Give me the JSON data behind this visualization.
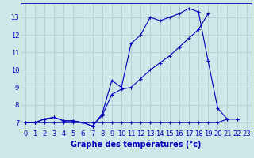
{
  "bg_color": "#cce8e8",
  "grid_color": "#aacaca",
  "line_color": "#0000bb",
  "x_hours": [
    0,
    1,
    2,
    3,
    4,
    5,
    6,
    7,
    8,
    9,
    10,
    11,
    12,
    13,
    14,
    15,
    16,
    17,
    18,
    19,
    20,
    21,
    22,
    23
  ],
  "series1": [
    7.0,
    7.0,
    7.2,
    7.3,
    7.1,
    7.1,
    7.0,
    6.8,
    7.5,
    9.4,
    9.0,
    11.5,
    12.0,
    13.0,
    12.8,
    13.0,
    13.2,
    13.5,
    13.3,
    10.5,
    7.8,
    7.2,
    7.2,
    null
  ],
  "series2": [
    7.0,
    7.0,
    7.2,
    7.3,
    7.1,
    7.1,
    7.0,
    6.8,
    7.4,
    8.6,
    8.9,
    9.0,
    9.5,
    10.0,
    10.4,
    10.8,
    11.3,
    11.8,
    12.3,
    13.2,
    null,
    null,
    null,
    null
  ],
  "series3": [
    7.0,
    7.0,
    7.0,
    7.0,
    7.0,
    7.0,
    7.0,
    7.0,
    7.0,
    7.0,
    7.0,
    7.0,
    7.0,
    7.0,
    7.0,
    7.0,
    7.0,
    7.0,
    7.0,
    7.0,
    7.0,
    7.2,
    7.2,
    null
  ],
  "ylim": [
    6.6,
    13.8
  ],
  "yticks": [
    7,
    8,
    9,
    10,
    11,
    12,
    13
  ],
  "xlabel": "Graphe des températures (°c)",
  "tick_fontsize": 6,
  "label_fontsize": 7
}
